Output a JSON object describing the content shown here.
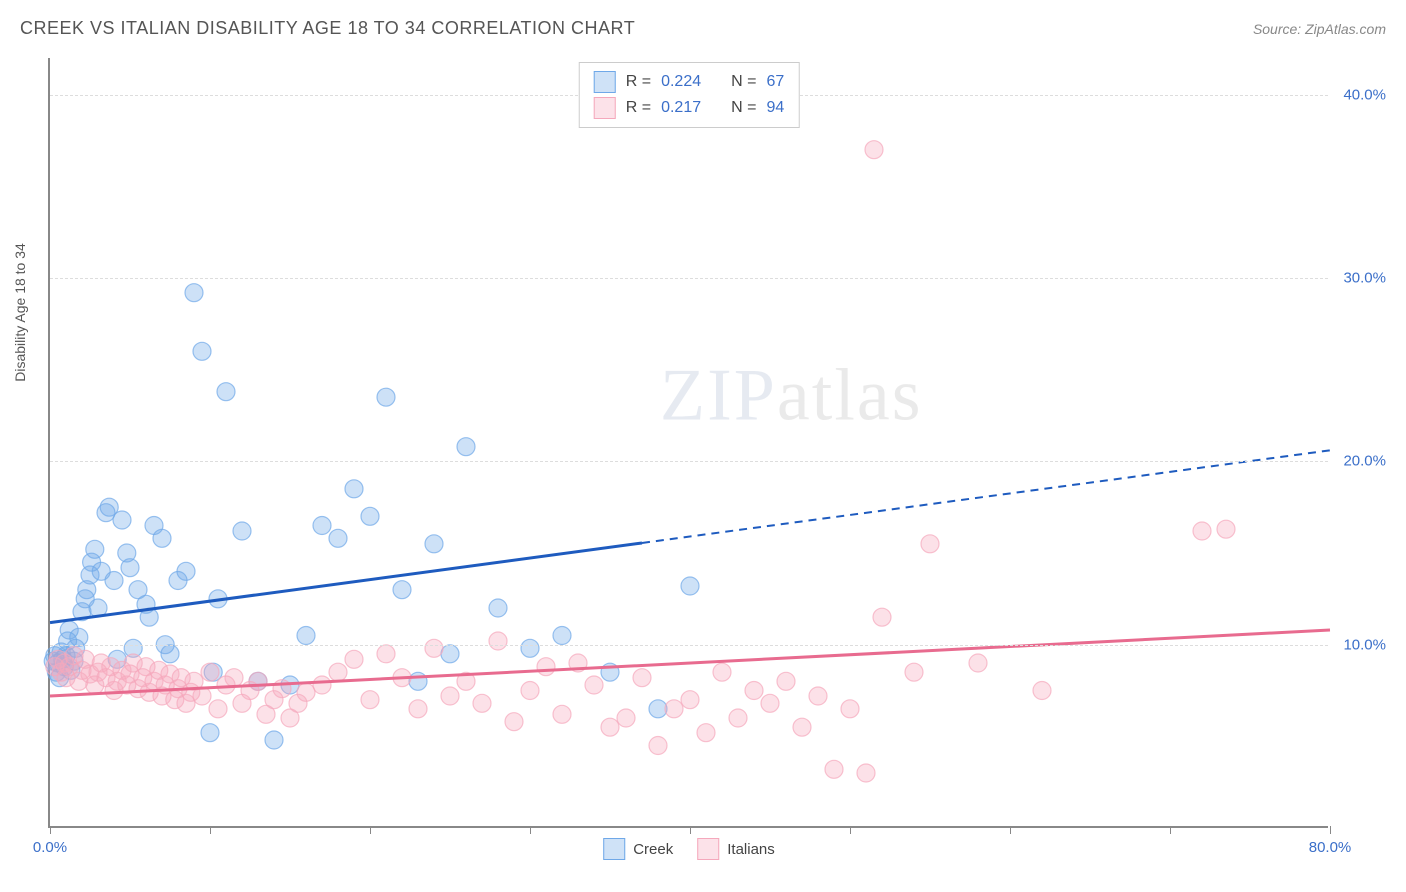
{
  "header": {
    "title": "CREEK VS ITALIAN DISABILITY AGE 18 TO 34 CORRELATION CHART",
    "source_prefix": "Source: ",
    "source_name": "ZipAtlas.com"
  },
  "watermark": {
    "part1": "ZIP",
    "part2": "atlas"
  },
  "chart": {
    "type": "scatter",
    "y_axis_label": "Disability Age 18 to 34",
    "background_color": "#ffffff",
    "grid_color": "#dddddd",
    "axis_color": "#888888",
    "tick_label_color": "#3b6fc9",
    "xlim": [
      0,
      80
    ],
    "ylim": [
      0,
      42
    ],
    "x_ticks": [
      0,
      10,
      20,
      30,
      40,
      50,
      60,
      70,
      80
    ],
    "x_tick_labels": {
      "0": "0.0%",
      "80": "80.0%"
    },
    "y_ticks": [
      10,
      20,
      30,
      40
    ],
    "y_tick_labels": {
      "10": "10.0%",
      "20": "20.0%",
      "30": "30.0%",
      "40": "40.0%"
    },
    "marker_radius": 9,
    "marker_fill_opacity": 0.35,
    "marker_stroke_opacity": 0.7,
    "marker_stroke_width": 1.2,
    "series": [
      {
        "name": "Creek",
        "color": "#6fa8e8",
        "line_color": "#1e5bbf",
        "r": "0.224",
        "n": "67",
        "trend": {
          "x1": 0,
          "y1": 11.2,
          "x2": 80,
          "y2": 20.6,
          "solid_until_x": 37
        },
        "points": [
          [
            0.2,
            9.1
          ],
          [
            0.3,
            9.4
          ],
          [
            0.4,
            8.5
          ],
          [
            0.5,
            9.0
          ],
          [
            0.6,
            8.2
          ],
          [
            0.7,
            9.6
          ],
          [
            0.8,
            9.2
          ],
          [
            0.9,
            8.8
          ],
          [
            1.0,
            9.4
          ],
          [
            1.1,
            10.2
          ],
          [
            1.2,
            10.8
          ],
          [
            1.3,
            8.6
          ],
          [
            1.5,
            9.1
          ],
          [
            1.6,
            9.8
          ],
          [
            1.8,
            10.4
          ],
          [
            2.0,
            11.8
          ],
          [
            2.2,
            12.5
          ],
          [
            2.3,
            13.0
          ],
          [
            2.5,
            13.8
          ],
          [
            2.6,
            14.5
          ],
          [
            2.8,
            15.2
          ],
          [
            3.0,
            12.0
          ],
          [
            3.2,
            14.0
          ],
          [
            3.5,
            17.2
          ],
          [
            3.7,
            17.5
          ],
          [
            4.0,
            13.5
          ],
          [
            4.2,
            9.2
          ],
          [
            4.5,
            16.8
          ],
          [
            4.8,
            15.0
          ],
          [
            5.0,
            14.2
          ],
          [
            5.2,
            9.8
          ],
          [
            5.5,
            13.0
          ],
          [
            6.0,
            12.2
          ],
          [
            6.2,
            11.5
          ],
          [
            6.5,
            16.5
          ],
          [
            7.0,
            15.8
          ],
          [
            7.2,
            10.0
          ],
          [
            7.5,
            9.5
          ],
          [
            8.0,
            13.5
          ],
          [
            8.5,
            14.0
          ],
          [
            9.0,
            29.2
          ],
          [
            9.5,
            26.0
          ],
          [
            10.0,
            5.2
          ],
          [
            10.2,
            8.5
          ],
          [
            10.5,
            12.5
          ],
          [
            11.0,
            23.8
          ],
          [
            12.0,
            16.2
          ],
          [
            13.0,
            8.0
          ],
          [
            14.0,
            4.8
          ],
          [
            15.0,
            7.8
          ],
          [
            16.0,
            10.5
          ],
          [
            17.0,
            16.5
          ],
          [
            18.0,
            15.8
          ],
          [
            19.0,
            18.5
          ],
          [
            20.0,
            17.0
          ],
          [
            21.0,
            23.5
          ],
          [
            22.0,
            13.0
          ],
          [
            23.0,
            8.0
          ],
          [
            24.0,
            15.5
          ],
          [
            25.0,
            9.5
          ],
          [
            26.0,
            20.8
          ],
          [
            28.0,
            12.0
          ],
          [
            30.0,
            9.8
          ],
          [
            32.0,
            10.5
          ],
          [
            35.0,
            8.5
          ],
          [
            38.0,
            6.5
          ],
          [
            40.0,
            13.2
          ]
        ]
      },
      {
        "name": "Italians",
        "color": "#f5a8bc",
        "line_color": "#e86b8f",
        "r": "0.217",
        "n": "94",
        "trend": {
          "x1": 0,
          "y1": 7.2,
          "x2": 80,
          "y2": 10.8,
          "solid_until_x": 80
        },
        "points": [
          [
            0.3,
            8.8
          ],
          [
            0.5,
            9.2
          ],
          [
            0.7,
            8.5
          ],
          [
            0.9,
            9.0
          ],
          [
            1.0,
            8.2
          ],
          [
            1.2,
            8.8
          ],
          [
            1.5,
            9.4
          ],
          [
            1.8,
            8.0
          ],
          [
            2.0,
            8.6
          ],
          [
            2.2,
            9.2
          ],
          [
            2.5,
            8.4
          ],
          [
            2.8,
            7.8
          ],
          [
            3.0,
            8.5
          ],
          [
            3.2,
            9.0
          ],
          [
            3.5,
            8.2
          ],
          [
            3.8,
            8.8
          ],
          [
            4.0,
            7.5
          ],
          [
            4.2,
            8.0
          ],
          [
            4.5,
            8.6
          ],
          [
            4.8,
            7.8
          ],
          [
            5.0,
            8.4
          ],
          [
            5.2,
            9.0
          ],
          [
            5.5,
            7.6
          ],
          [
            5.8,
            8.2
          ],
          [
            6.0,
            8.8
          ],
          [
            6.2,
            7.4
          ],
          [
            6.5,
            8.0
          ],
          [
            6.8,
            8.6
          ],
          [
            7.0,
            7.2
          ],
          [
            7.2,
            7.8
          ],
          [
            7.5,
            8.4
          ],
          [
            7.8,
            7.0
          ],
          [
            8.0,
            7.6
          ],
          [
            8.2,
            8.2
          ],
          [
            8.5,
            6.8
          ],
          [
            8.8,
            7.4
          ],
          [
            9.0,
            8.0
          ],
          [
            9.5,
            7.2
          ],
          [
            10.0,
            8.5
          ],
          [
            10.5,
            6.5
          ],
          [
            11.0,
            7.8
          ],
          [
            11.5,
            8.2
          ],
          [
            12.0,
            6.8
          ],
          [
            12.5,
            7.5
          ],
          [
            13.0,
            8.0
          ],
          [
            13.5,
            6.2
          ],
          [
            14.0,
            7.0
          ],
          [
            14.5,
            7.6
          ],
          [
            15.0,
            6.0
          ],
          [
            15.5,
            6.8
          ],
          [
            16.0,
            7.4
          ],
          [
            17.0,
            7.8
          ],
          [
            18.0,
            8.5
          ],
          [
            19.0,
            9.2
          ],
          [
            20.0,
            7.0
          ],
          [
            21.0,
            9.5
          ],
          [
            22.0,
            8.2
          ],
          [
            23.0,
            6.5
          ],
          [
            24.0,
            9.8
          ],
          [
            25.0,
            7.2
          ],
          [
            26.0,
            8.0
          ],
          [
            27.0,
            6.8
          ],
          [
            28.0,
            10.2
          ],
          [
            29.0,
            5.8
          ],
          [
            30.0,
            7.5
          ],
          [
            31.0,
            8.8
          ],
          [
            32.0,
            6.2
          ],
          [
            33.0,
            9.0
          ],
          [
            34.0,
            7.8
          ],
          [
            35.0,
            5.5
          ],
          [
            36.0,
            6.0
          ],
          [
            37.0,
            8.2
          ],
          [
            38.0,
            4.5
          ],
          [
            39.0,
            6.5
          ],
          [
            40.0,
            7.0
          ],
          [
            41.0,
            5.2
          ],
          [
            42.0,
            8.5
          ],
          [
            43.0,
            6.0
          ],
          [
            44.0,
            7.5
          ],
          [
            45.0,
            6.8
          ],
          [
            46.0,
            8.0
          ],
          [
            47.0,
            5.5
          ],
          [
            48.0,
            7.2
          ],
          [
            49.0,
            3.2
          ],
          [
            50.0,
            6.5
          ],
          [
            51.0,
            3.0
          ],
          [
            51.5,
            37.0
          ],
          [
            52.0,
            11.5
          ],
          [
            54.0,
            8.5
          ],
          [
            55.0,
            15.5
          ],
          [
            58.0,
            9.0
          ],
          [
            62.0,
            7.5
          ],
          [
            72.0,
            16.2
          ],
          [
            73.5,
            16.3
          ]
        ]
      }
    ],
    "legend_top": {
      "r_label": "R =",
      "n_label": "N ="
    },
    "legend_bottom_labels": [
      "Creek",
      "Italians"
    ]
  }
}
